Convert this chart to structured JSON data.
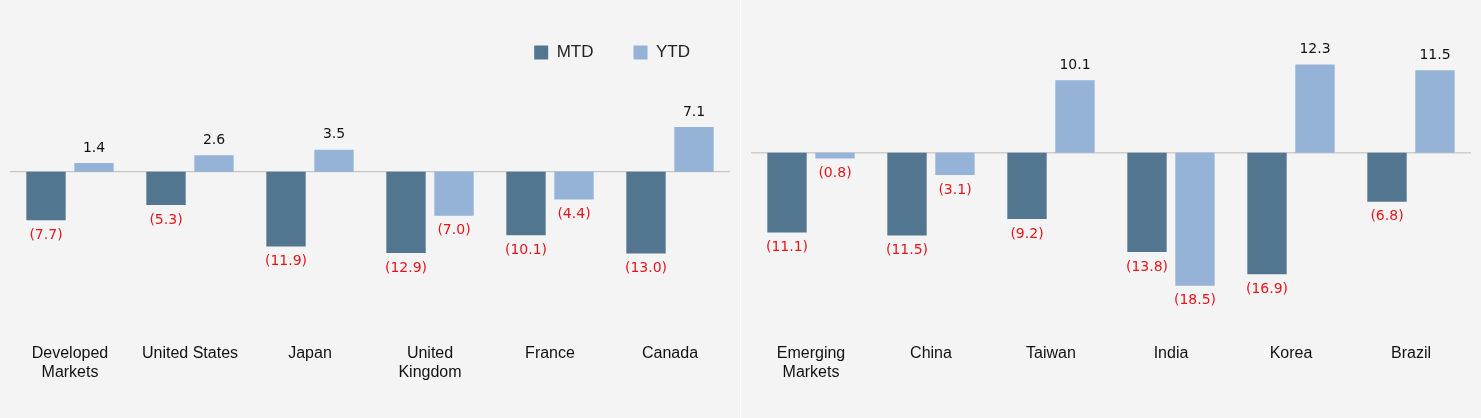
{
  "chart_data": [
    {
      "type": "bar",
      "categories": [
        "Developed Markets",
        "United States",
        "Japan",
        "United Kingdom",
        "France",
        "Canada"
      ],
      "legend": "top right",
      "data_labels": true,
      "series": [
        {
          "name": "MTD",
          "color": "#52768f",
          "values": [
            -7.7,
            -5.3,
            -11.9,
            -12.9,
            -10.1,
            -13.0
          ],
          "value_labels": [
            "(7.7)",
            "(5.3)",
            "(11.9)",
            "(12.9)",
            "(10.1)",
            "(13.0)"
          ]
        },
        {
          "name": "YTD",
          "color": "#95b3d7",
          "values": [
            1.4,
            2.6,
            3.5,
            -7.0,
            -4.4,
            7.1
          ],
          "value_labels": [
            "1.4",
            "2.6",
            "3.5",
            "(7.0)",
            "(4.4)",
            "7.1"
          ]
        }
      ]
    },
    {
      "type": "bar",
      "categories": [
        "Emerging Markets",
        "China",
        "Taiwan",
        "India",
        "Korea",
        "Brazil"
      ],
      "data_labels": true,
      "series": [
        {
          "color": "#52768f",
          "values": [
            -11.1,
            -11.5,
            -9.2,
            -13.8,
            -16.9,
            -6.8
          ],
          "value_labels": [
            "(11.1)",
            "(11.5)",
            "(9.2)",
            "(13.8)",
            "(16.9)",
            "(6.8)"
          ]
        },
        {
          "color": "#95b3d7",
          "values": [
            -0.8,
            -3.1,
            10.1,
            -18.5,
            12.3,
            11.5
          ],
          "value_labels": [
            "(0.8)",
            "(3.1)",
            "10.1",
            "(18.5)",
            "12.3",
            "11.5"
          ]
        }
      ]
    }
  ]
}
